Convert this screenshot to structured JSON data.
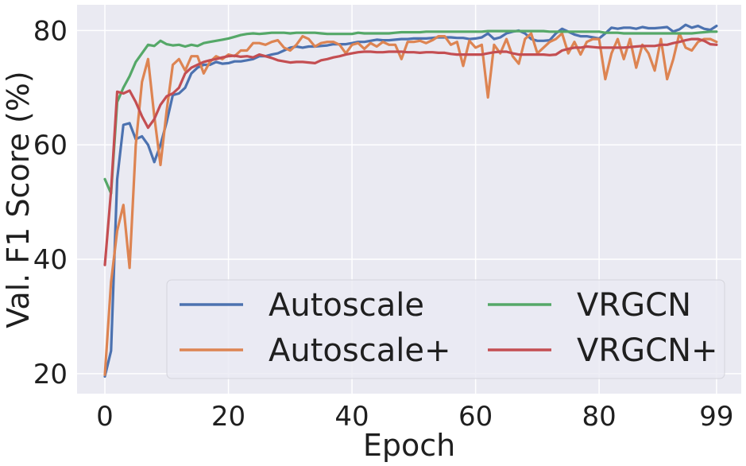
{
  "chart_data": {
    "type": "line",
    "title": "",
    "xlabel": "Epoch",
    "ylabel": "Val. F1 Score (%)",
    "xlim": [
      -4.5,
      103
    ],
    "ylim": [
      16.5,
      84.5
    ],
    "xticks": [
      0,
      20,
      40,
      60,
      80,
      99
    ],
    "yticks": [
      20,
      40,
      60,
      80
    ],
    "xtick_labels": [
      "0",
      "20",
      "40",
      "60",
      "80",
      "99"
    ],
    "ytick_labels": [
      "20",
      "40",
      "60",
      "80"
    ],
    "grid": true,
    "background": "#eaeaf2",
    "legend": {
      "placement": "lower-right",
      "columns": 2
    },
    "x": [
      0,
      1,
      2,
      3,
      4,
      5,
      6,
      7,
      8,
      9,
      10,
      11,
      12,
      13,
      14,
      15,
      16,
      17,
      18,
      19,
      20,
      21,
      22,
      23,
      24,
      25,
      26,
      27,
      28,
      29,
      30,
      31,
      32,
      33,
      34,
      35,
      36,
      37,
      38,
      39,
      40,
      41,
      42,
      43,
      44,
      45,
      46,
      47,
      48,
      49,
      50,
      51,
      52,
      53,
      54,
      55,
      56,
      57,
      58,
      59,
      60,
      61,
      62,
      63,
      64,
      65,
      66,
      67,
      68,
      69,
      70,
      71,
      72,
      73,
      74,
      75,
      76,
      77,
      78,
      79,
      80,
      81,
      82,
      83,
      84,
      85,
      86,
      87,
      88,
      89,
      90,
      91,
      92,
      93,
      94,
      95,
      96,
      97,
      98,
      99
    ],
    "series": [
      {
        "name": "Autoscale",
        "color": "#4c72b0",
        "values": [
          19.5,
          24,
          54,
          63.5,
          63.8,
          61,
          61.5,
          60,
          57,
          60,
          64,
          68.7,
          69,
          70,
          72.5,
          73.5,
          74,
          74,
          74.5,
          74.2,
          74.3,
          74.6,
          74.6,
          74.8,
          75,
          75.5,
          75.5,
          75.8,
          76,
          76.5,
          77,
          77.2,
          77,
          77.2,
          77.2,
          77.3,
          77.4,
          77.6,
          77.6,
          77.6,
          77.8,
          78,
          78,
          78.2,
          78.4,
          78.3,
          78.3,
          78.4,
          78.5,
          78.5,
          78.6,
          78.6,
          78.6,
          78.7,
          78.8,
          78.8,
          78.8,
          78.7,
          78.7,
          78.5,
          78.6,
          78.8,
          79.5,
          78.5,
          78.8,
          79.5,
          79.8,
          80,
          79.5,
          78.5,
          78.2,
          78.2,
          78.3,
          79.5,
          80.3,
          79.8,
          79.3,
          79,
          79,
          78.8,
          78.6,
          79.5,
          80.5,
          80.3,
          80.5,
          80.5,
          80.3,
          80.6,
          80.4,
          80.4,
          80.5,
          80.6,
          79.8,
          80.2,
          81,
          80.5,
          80.8,
          80.3,
          80.1,
          80.8
        ]
      },
      {
        "name": "Autoscale+",
        "color": "#dd8452",
        "values": [
          19.8,
          36,
          45,
          49.5,
          38.5,
          60,
          71,
          75,
          65,
          56.5,
          66,
          74,
          75,
          73,
          75.5,
          75.5,
          72.5,
          74.5,
          75.5,
          75,
          75.8,
          75.5,
          76.5,
          76.5,
          77.8,
          77.8,
          77.5,
          78,
          78.3,
          77,
          76.5,
          77.5,
          79,
          78.5,
          77.2,
          77.8,
          78,
          78,
          77.5,
          76,
          77.5,
          77.8,
          76.8,
          77.8,
          77.2,
          78,
          77.5,
          77.5,
          75,
          78,
          78,
          78.2,
          77.8,
          78.3,
          79,
          79,
          77.5,
          78,
          73.8,
          78.2,
          77,
          77.5,
          68.3,
          77.5,
          76,
          78.5,
          75.5,
          74.2,
          78.5,
          79.5,
          76,
          77,
          78,
          78.5,
          79.5,
          76,
          78,
          75.8,
          78,
          78.5,
          78.5,
          71.5,
          76,
          78.5,
          75,
          78.5,
          73.5,
          77.5,
          76,
          73,
          78.5,
          71.5,
          75,
          79.5,
          77,
          76.5,
          78,
          78.5,
          78.5,
          78
        ]
      },
      {
        "name": "VRGCN",
        "color": "#55a868",
        "values": [
          54,
          51.5,
          67.5,
          70,
          72,
          74.5,
          76,
          77.5,
          77.3,
          78.2,
          77.6,
          77.4,
          77.5,
          77.2,
          77.5,
          77.3,
          77.8,
          78,
          78.2,
          78.4,
          78.6,
          78.9,
          79.2,
          79.4,
          79.5,
          79.4,
          79.5,
          79.6,
          79.6,
          79.6,
          79.5,
          79.6,
          79.6,
          79.6,
          79.6,
          79.5,
          79.4,
          79.4,
          79.4,
          79.4,
          79.4,
          79.6,
          79.5,
          79.5,
          79.5,
          79.5,
          79.5,
          79.6,
          79.7,
          79.7,
          79.7,
          79.7,
          79.8,
          79.8,
          79.8,
          79.8,
          79.8,
          79.8,
          79.8,
          79.8,
          79.8,
          79.8,
          79.9,
          79.9,
          79.9,
          79.9,
          79.9,
          79.9,
          79.9,
          79.9,
          79.9,
          79.9,
          79.8,
          79.8,
          79.8,
          79.8,
          79.8,
          79.8,
          79.8,
          79.8,
          79.8,
          79.6,
          79.6,
          79.6,
          79.5,
          79.5,
          79.5,
          79.5,
          79.5,
          79.5,
          79.5,
          79.5,
          79.5,
          79.5,
          79.5,
          79.5,
          79.6,
          79.7,
          79.8,
          79.8
        ]
      },
      {
        "name": "VRGCN+",
        "color": "#c44e52",
        "values": [
          39,
          52,
          69.3,
          69,
          69.5,
          67.5,
          65,
          63,
          64.5,
          67,
          68.5,
          69,
          70,
          72.5,
          73.5,
          74,
          74.5,
          74.8,
          75,
          75.3,
          75.5,
          75.6,
          75.4,
          75.5,
          75.3,
          75.8,
          75.5,
          75.2,
          74.8,
          74.6,
          74.4,
          74.5,
          74.5,
          74.4,
          74.3,
          74.8,
          75,
          75.3,
          75.5,
          75.8,
          76,
          76.2,
          76.3,
          76.3,
          76.2,
          76.2,
          76.3,
          76.3,
          76.3,
          76.2,
          76.2,
          76.1,
          76.2,
          76.2,
          76.1,
          76.1,
          75.9,
          75.8,
          75.8,
          75.8,
          75.8,
          75.8,
          76,
          76.2,
          76.3,
          76.3,
          76,
          75.8,
          75.8,
          75.8,
          75.8,
          75.8,
          75.7,
          75.8,
          76.5,
          76.8,
          77,
          77,
          77.2,
          77.1,
          77,
          77,
          77,
          77,
          77,
          77.1,
          77.2,
          77.3,
          77.3,
          77.3,
          77.5,
          77.5,
          77.8,
          78,
          78.3,
          78.5,
          78.5,
          78.2,
          77.6,
          77.5
        ]
      }
    ]
  }
}
